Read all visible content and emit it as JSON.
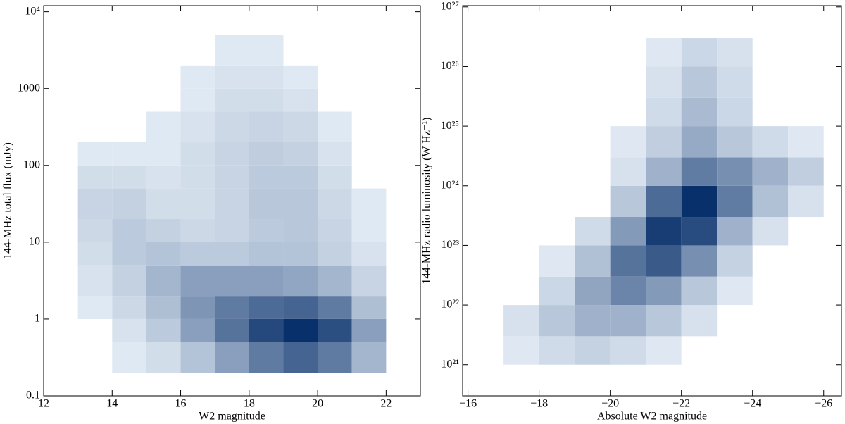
{
  "chart_data": [
    {
      "type": "hexbin",
      "xlabel": "W2 magnitude",
      "ylabel": "144-MHz total flux (mJy)",
      "xlim": [
        12,
        23
      ],
      "ylim": [
        0.1,
        12000
      ],
      "yscale": "log",
      "xticks": [
        12,
        14,
        16,
        18,
        20,
        22
      ],
      "yticks": [
        0.1,
        1,
        10,
        100,
        1000,
        {
          "value": 10000,
          "label": "10⁴"
        }
      ],
      "color_low": "#eef5fc",
      "color_high": "#08306b",
      "xbins": [
        13,
        14,
        15,
        16,
        17,
        18,
        19,
        20,
        21,
        22
      ],
      "ybins": [
        0.2,
        0.5,
        1,
        2,
        5,
        10,
        20,
        50,
        100,
        200,
        500,
        1000,
        2000,
        5000
      ],
      "counts": [
        [
          0,
          1,
          3,
          10,
          25,
          45,
          60,
          45,
          15
        ],
        [
          0,
          2,
          8,
          25,
          50,
          80,
          100,
          75,
          25
        ],
        [
          1,
          4,
          12,
          30,
          45,
          55,
          60,
          45,
          12
        ],
        [
          2,
          6,
          15,
          25,
          25,
          25,
          22,
          15,
          5
        ],
        [
          3,
          8,
          10,
          8,
          8,
          10,
          10,
          6,
          2
        ],
        [
          4,
          8,
          6,
          4,
          5,
          8,
          9,
          5,
          1
        ],
        [
          5,
          6,
          3,
          3,
          5,
          9,
          9,
          4,
          1
        ],
        [
          3,
          3,
          2,
          3,
          5,
          8,
          8,
          3,
          0
        ],
        [
          1,
          1,
          1,
          3,
          5,
          7,
          6,
          2,
          0
        ],
        [
          0,
          0,
          1,
          2,
          4,
          5,
          4,
          1,
          0
        ],
        [
          0,
          0,
          0,
          1,
          3,
          3,
          2,
          0,
          0
        ],
        [
          0,
          0,
          0,
          1,
          2,
          2,
          1,
          0,
          0
        ],
        [
          0,
          0,
          0,
          0,
          1,
          1,
          0,
          0,
          0
        ]
      ]
    },
    {
      "type": "hexbin",
      "xlabel": "Absolute W2 magnitude",
      "ylabel": "144-MHz radio luminosity (W Hz⁻¹)",
      "xlim": [
        -15.85,
        -26.5
      ],
      "ylim": [
        3e+20,
        1.05e+27
      ],
      "yscale": "log",
      "xticks": [
        {
          "value": -16,
          "label": "−16"
        },
        {
          "value": -18,
          "label": "−18"
        },
        {
          "value": -20,
          "label": "−20"
        },
        {
          "value": -22,
          "label": "−22"
        },
        {
          "value": -24,
          "label": "−24"
        },
        {
          "value": -26,
          "label": "−26"
        }
      ],
      "yticks": [
        {
          "value": 1e+21,
          "label": "10²¹"
        },
        {
          "value": 1e+22,
          "label": "10²²"
        },
        {
          "value": 1e+23,
          "label": "10²³"
        },
        {
          "value": 1e+24,
          "label": "10²⁴"
        },
        {
          "value": 1e+25,
          "label": "10²⁵"
        },
        {
          "value": 1e+26,
          "label": "10²⁶"
        },
        {
          "value": 1e+27,
          "label": "10²⁷"
        }
      ],
      "color_low": "#eef5fc",
      "color_high": "#08306b",
      "xbins": [
        -17,
        -18,
        -19,
        -20,
        -21,
        -22,
        -23,
        -24,
        -25,
        -26
      ],
      "ybins": [
        1e+21,
        3e+21,
        1e+22,
        3e+22,
        1e+23,
        3e+23,
        1e+24,
        3e+24,
        1e+25,
        3e+25,
        1e+26,
        3e+26
      ],
      "counts": [
        [
          1,
          3,
          5,
          3,
          1,
          0,
          0,
          0,
          0
        ],
        [
          2,
          8,
          15,
          15,
          8,
          2,
          0,
          0,
          0
        ],
        [
          0,
          4,
          20,
          35,
          25,
          8,
          1,
          0,
          0
        ],
        [
          0,
          1,
          10,
          45,
          60,
          30,
          5,
          0,
          0
        ],
        [
          0,
          0,
          3,
          25,
          80,
          70,
          15,
          2,
          0
        ],
        [
          0,
          0,
          0,
          8,
          50,
          90,
          40,
          10,
          2
        ],
        [
          0,
          0,
          0,
          2,
          15,
          40,
          30,
          15,
          6
        ],
        [
          0,
          0,
          0,
          1,
          6,
          18,
          8,
          3,
          1
        ],
        [
          0,
          0,
          0,
          0,
          3,
          12,
          4,
          0,
          0
        ],
        [
          0,
          0,
          0,
          0,
          2,
          8,
          3,
          0,
          0
        ],
        [
          0,
          0,
          0,
          0,
          1,
          4,
          2,
          0,
          0
        ]
      ]
    }
  ]
}
